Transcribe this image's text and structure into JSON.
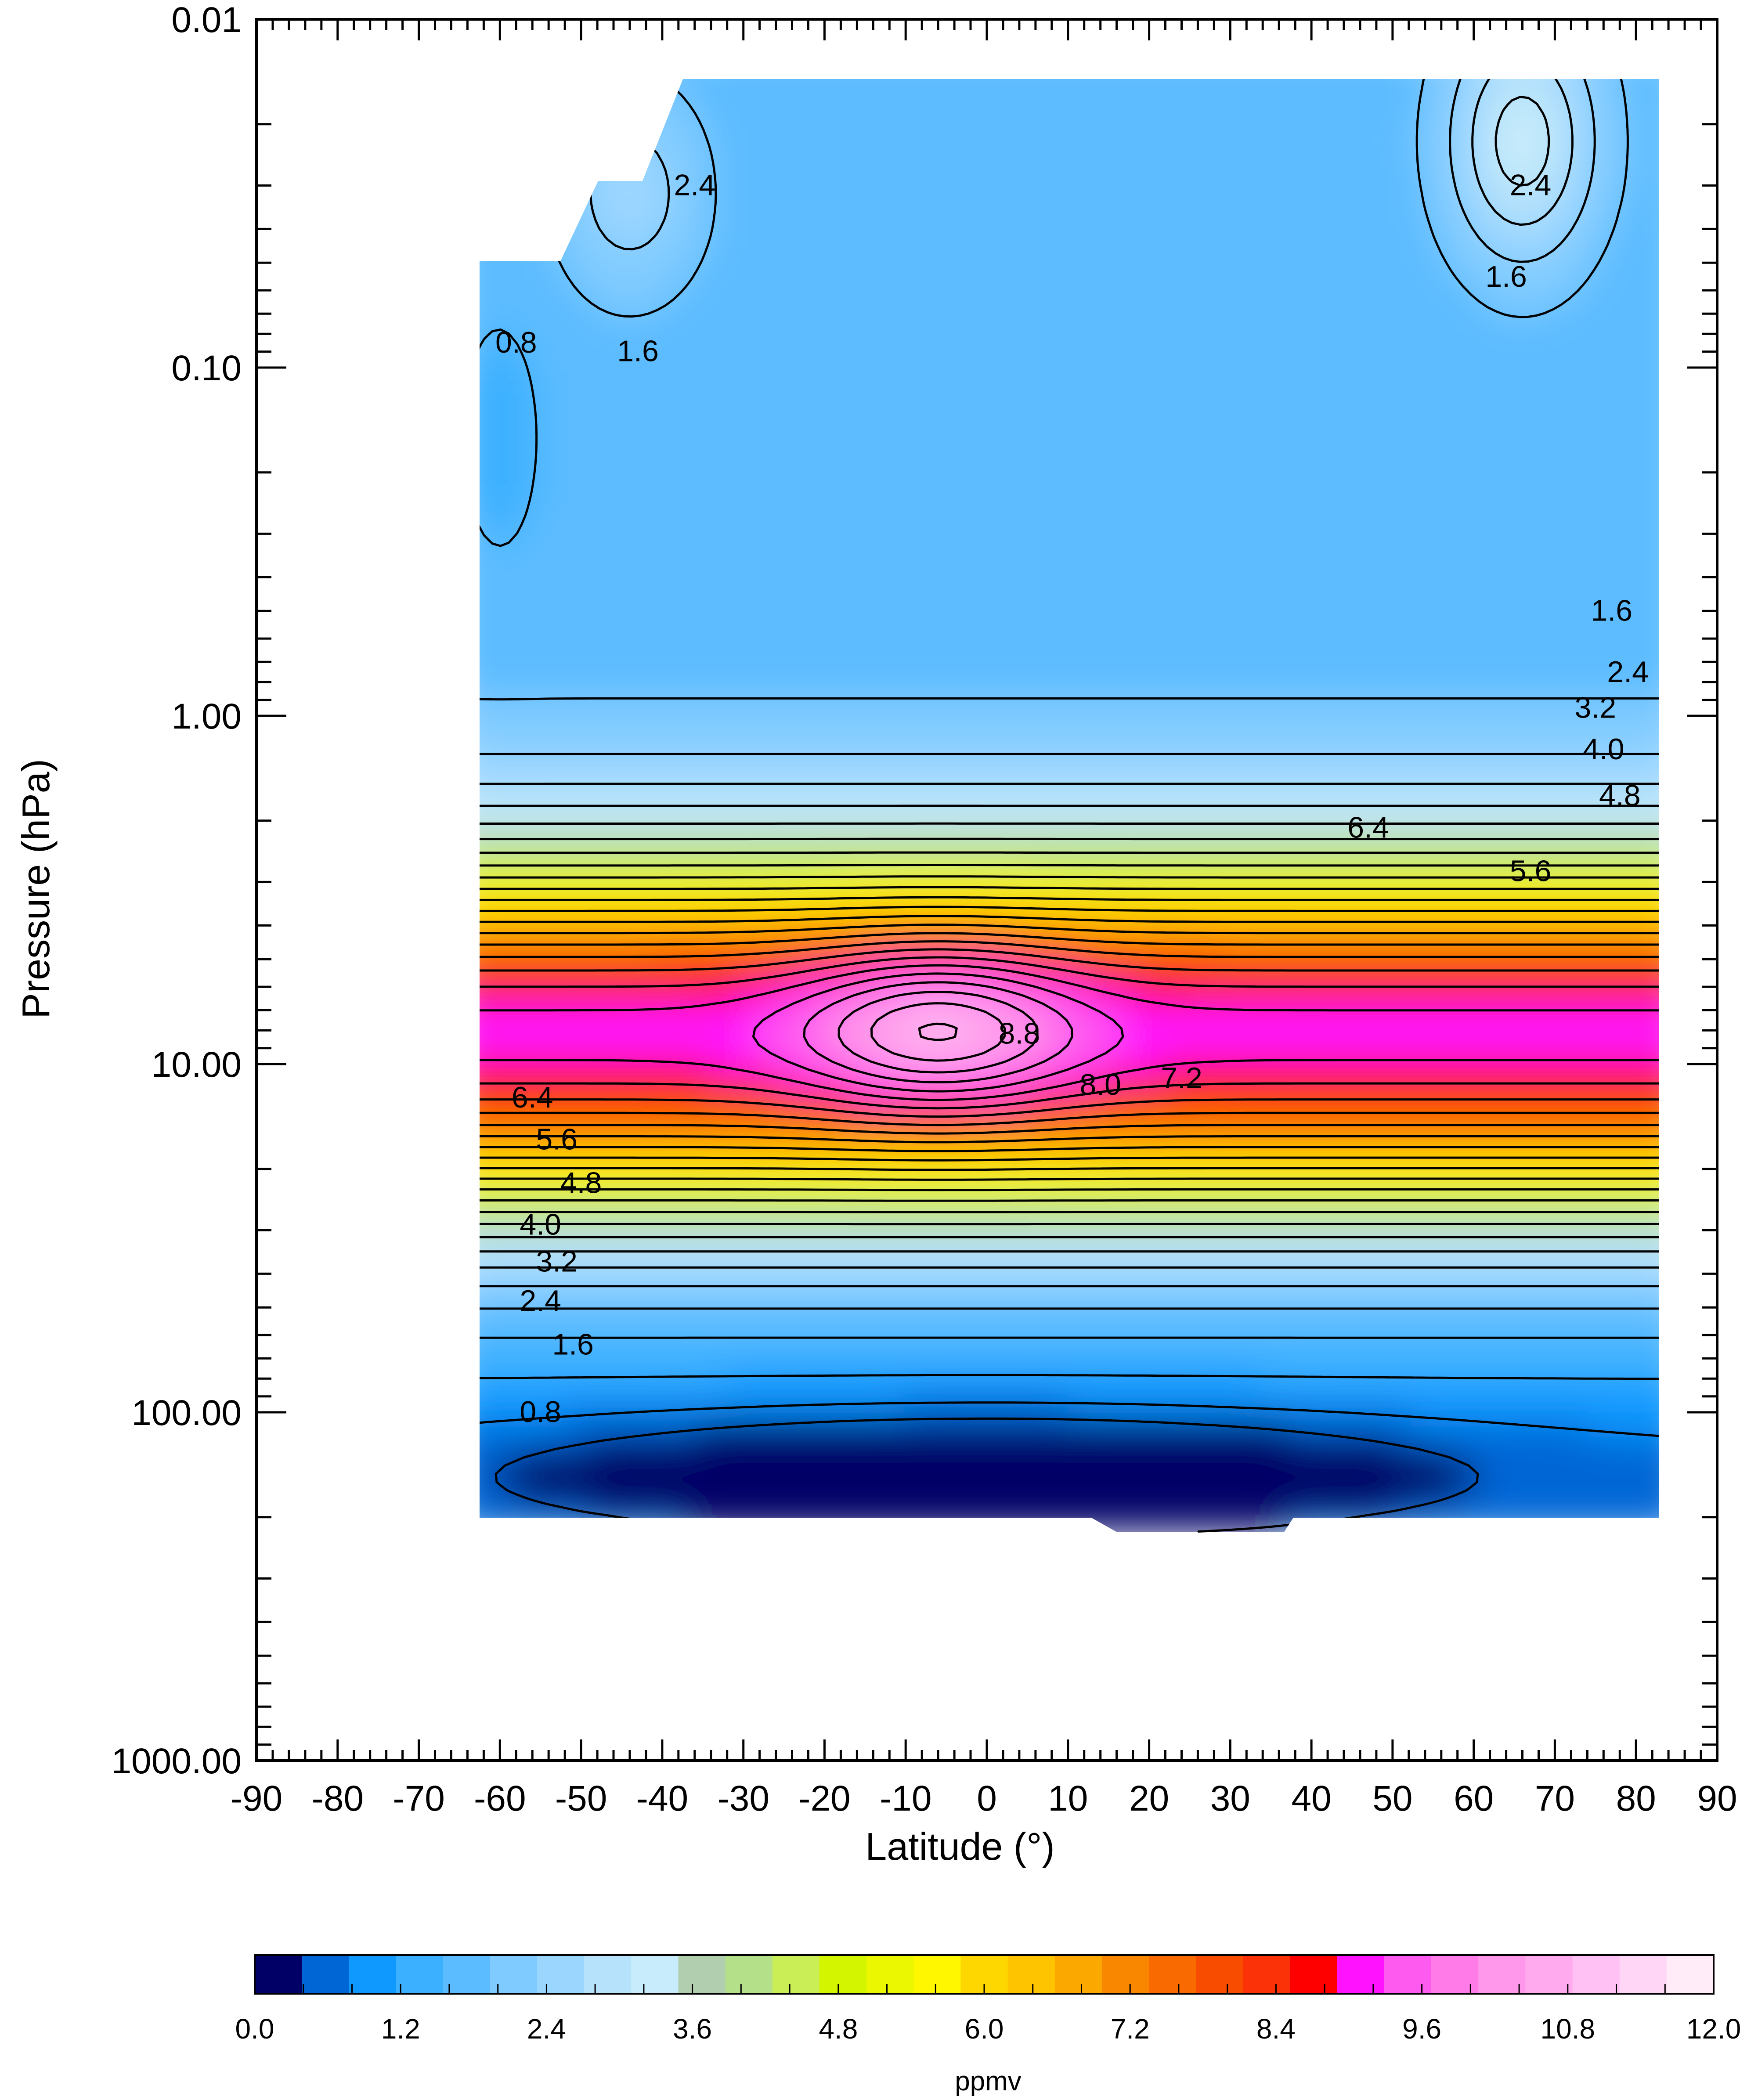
{
  "chart_data": {
    "type": "heatmap",
    "subtype": "filled-contour",
    "xlabel": "Latitude (°)",
    "ylabel": "Pressure (hPa)",
    "xlim": [
      -90,
      90
    ],
    "ylim": [
      1000,
      0.01
    ],
    "y_scale": "log",
    "x_ticks": [
      -90,
      -80,
      -70,
      -60,
      -50,
      -40,
      -30,
      -20,
      -10,
      0,
      10,
      20,
      30,
      40,
      50,
      60,
      70,
      80,
      90
    ],
    "x_tick_labels": [
      "-90",
      "-80",
      "-70",
      "-60",
      "-50",
      "-40",
      "-30",
      "-20",
      "-10",
      "0",
      "10",
      "20",
      "30",
      "40",
      "50",
      "60",
      "70",
      "80",
      "90"
    ],
    "y_ticks": [
      0.01,
      0.1,
      1,
      10,
      100,
      1000
    ],
    "y_tick_labels": [
      "0.01",
      "0.10",
      "1.00",
      "10.00",
      "100.00",
      "1000.00"
    ],
    "contour_interval": 0.4,
    "contour_labels": [
      {
        "text": "0.8",
        "lat": -58,
        "p": 0.085
      },
      {
        "text": "1.6",
        "lat": -43,
        "p": 0.09
      },
      {
        "text": "2.4",
        "lat": -36,
        "p": 0.03
      },
      {
        "text": "2.4",
        "lat": 67,
        "p": 0.03
      },
      {
        "text": "1.6",
        "lat": 64,
        "p": 0.055
      },
      {
        "text": "1.6",
        "lat": 77,
        "p": 0.5
      },
      {
        "text": "2.4",
        "lat": 79,
        "p": 0.75
      },
      {
        "text": "3.2",
        "lat": 75,
        "p": 0.95
      },
      {
        "text": "4.0",
        "lat": 76,
        "p": 1.25
      },
      {
        "text": "4.8",
        "lat": 78,
        "p": 1.7
      },
      {
        "text": "5.6",
        "lat": 67,
        "p": 2.8
      },
      {
        "text": "6.4",
        "lat": 47,
        "p": 2.1
      },
      {
        "text": "8.8",
        "lat": 4,
        "p": 8.2
      },
      {
        "text": "8.0",
        "lat": 14,
        "p": 11.5
      },
      {
        "text": "7.2",
        "lat": 24,
        "p": 11.0
      },
      {
        "text": "6.4",
        "lat": -56,
        "p": 12.5
      },
      {
        "text": "5.6",
        "lat": -53,
        "p": 16.5
      },
      {
        "text": "4.8",
        "lat": -50,
        "p": 22.0
      },
      {
        "text": "4.0",
        "lat": -55,
        "p": 29.0
      },
      {
        "text": "3.2",
        "lat": -53,
        "p": 37.0
      },
      {
        "text": "2.4",
        "lat": -55,
        "p": 48.0
      },
      {
        "text": "1.6",
        "lat": -51,
        "p": 64.0
      },
      {
        "text": "0.8",
        "lat": -55,
        "p": 100.0
      }
    ],
    "colorbar": {
      "label": "ppmv",
      "min": 0.0,
      "max": 12.0,
      "step": 0.4,
      "tick_values": [
        0.0,
        1.2,
        2.4,
        3.6,
        4.8,
        6.0,
        7.2,
        8.4,
        9.6,
        10.8,
        12.0
      ],
      "tick_labels": [
        "0.0",
        "1.2",
        "2.4",
        "3.6",
        "4.8",
        "6.0",
        "7.2",
        "8.4",
        "9.6",
        "10.8",
        "12.0"
      ],
      "colors": [
        "#000066",
        "#0066d6",
        "#0f99ff",
        "#3bb0ff",
        "#5bbcff",
        "#7fcbff",
        "#9bd6ff",
        "#b6e2fb",
        "#c8ecfb",
        "#b1cfae",
        "#b5e08a",
        "#c9ee56",
        "#d4f500",
        "#eaf700",
        "#fff700",
        "#ffd700",
        "#ffc400",
        "#fba800",
        "#f98800",
        "#f96a00",
        "#f84c00",
        "#fb3108",
        "#fe0000",
        "#ff13ff",
        "#ff5aef",
        "#ff7be8",
        "#ff97ea",
        "#ffa9ee",
        "#ffc0f3",
        "#ffd6f5",
        "#ffecf8"
      ]
    },
    "data_extent": {
      "lat_min": -63,
      "lat_max": 83,
      "p_min": 0.015,
      "p_max": 200
    }
  }
}
